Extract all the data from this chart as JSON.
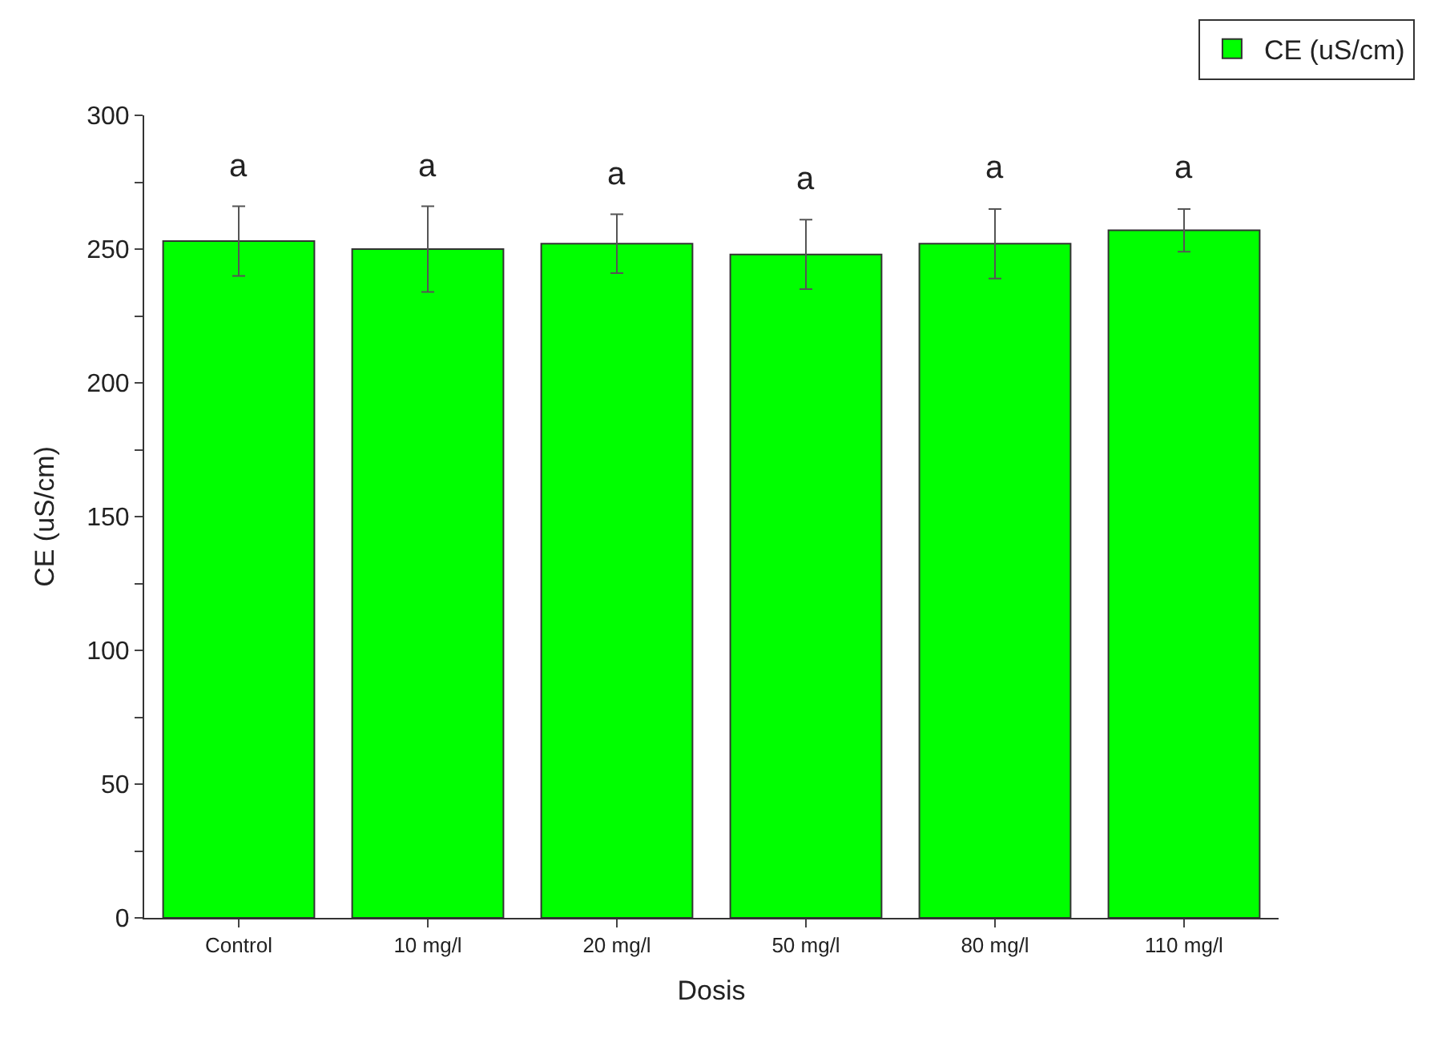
{
  "chart_data": {
    "type": "bar",
    "xlabel": "Dosis",
    "ylabel": "CE (uS/cm)",
    "categories": [
      "Control",
      "10 mg/l",
      "20 mg/l",
      "50 mg/l",
      "80 mg/l",
      "110 mg/l"
    ],
    "series": [
      {
        "name": "CE (uS/cm)",
        "color": "#00ff00",
        "values": [
          253,
          250,
          252,
          248,
          252,
          257
        ],
        "errors": [
          13,
          16,
          11,
          13,
          13,
          8
        ]
      }
    ],
    "ylim": [
      0,
      300
    ],
    "yticks": [
      0,
      {
        "value": 25,
        "label": null
      },
      50,
      {
        "value": 75,
        "label": null
      },
      100,
      {
        "value": 125,
        "label": null
      },
      150,
      {
        "value": 175,
        "label": null
      },
      200,
      {
        "value": 225,
        "label": null
      },
      250,
      {
        "value": 275,
        "label": null
      },
      300
    ],
    "annotations": [
      "a",
      "a",
      "a",
      "a",
      "a",
      "a"
    ],
    "legend": "top right"
  }
}
